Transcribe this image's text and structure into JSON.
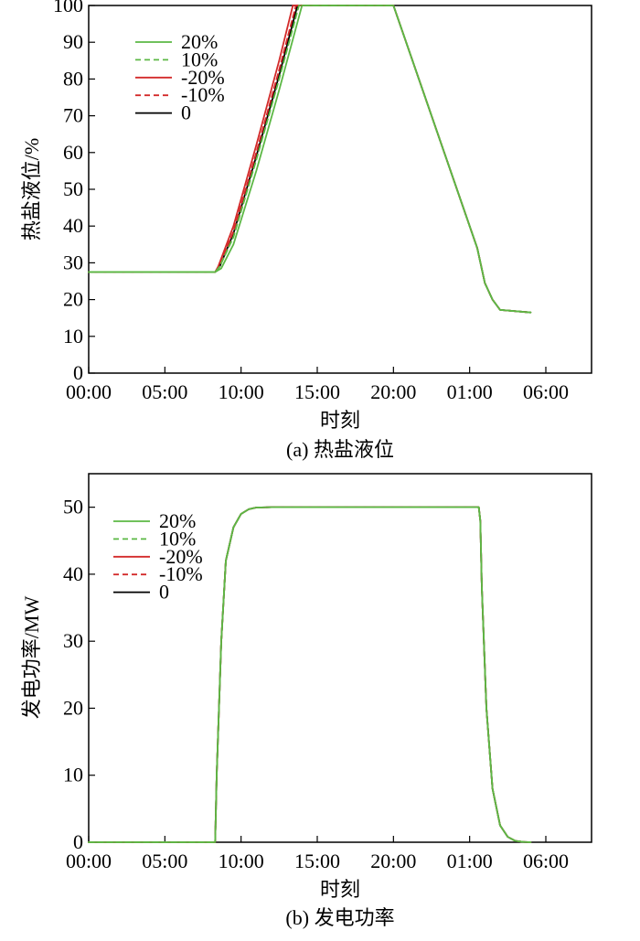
{
  "chart_data": [
    {
      "type": "line",
      "caption": "(a) 热盐液位",
      "xlabel": "时刻",
      "ylabel": "热盐液位/%",
      "x_ticks": [
        "00:00",
        "05:00",
        "10:00",
        "15:00",
        "20:00",
        "01:00",
        "06:00"
      ],
      "xlim": [
        0,
        33.0
      ],
      "ylim": [
        0,
        100
      ],
      "y_ticks": [
        "0",
        "10",
        "20",
        "30",
        "40",
        "50",
        "60",
        "70",
        "80",
        "90",
        "100"
      ],
      "grid": false,
      "legend_position": "top-left",
      "series": [
        {
          "name": "20%",
          "color": "#5cb845",
          "dash": "solid",
          "x": [
            0,
            8.3,
            8.7,
            9.5,
            11,
            12.5,
            14.0,
            20.0,
            22.0,
            24.0,
            25.5,
            26.0,
            26.5,
            27.0,
            29.0
          ],
          "y": [
            27.5,
            27.5,
            28.5,
            35,
            55,
            77,
            100,
            100,
            76,
            52,
            34,
            24.5,
            20,
            17.2,
            16.5
          ]
        },
        {
          "name": "10%",
          "color": "#5cb845",
          "dash": "dashed",
          "x": [
            0,
            8.3,
            8.6,
            9.5,
            11,
            12.5,
            13.8,
            20.0,
            22.0,
            24.0,
            25.5,
            26.0,
            26.5,
            27.0,
            29.0
          ],
          "y": [
            27.5,
            27.5,
            29,
            37,
            58,
            80,
            100,
            100,
            76,
            52,
            34,
            24.5,
            20,
            17.2,
            16.5
          ]
        },
        {
          "name": "-20%",
          "color": "#d32a2a",
          "dash": "solid",
          "x": [
            0,
            8.3,
            8.5,
            9.5,
            11,
            12.5,
            13.4,
            20.0,
            22.0,
            24.0,
            25.5,
            26.0,
            26.5,
            27.0,
            29.0
          ],
          "y": [
            27.5,
            27.5,
            29,
            40,
            62,
            85,
            100,
            100,
            76,
            52,
            34,
            24.5,
            20,
            17.2,
            16.5
          ]
        },
        {
          "name": "-10%",
          "color": "#d32a2a",
          "dash": "dashed",
          "x": [
            0,
            8.3,
            8.55,
            9.5,
            11,
            12.5,
            13.6,
            20.0,
            22.0,
            24.0,
            25.5,
            26.0,
            26.5,
            27.0,
            29.0
          ],
          "y": [
            27.5,
            27.5,
            29,
            38.5,
            60,
            82.5,
            100,
            100,
            76,
            52,
            34,
            24.5,
            20,
            17.2,
            16.5
          ]
        },
        {
          "name": "0",
          "color": "#000000",
          "dash": "solid",
          "x": [
            0,
            8.3,
            8.6,
            9.5,
            11,
            12.5,
            13.7,
            20.0,
            22.0,
            24.0,
            25.5,
            26.0,
            26.5,
            27.0,
            29.0
          ],
          "y": [
            27.5,
            27.5,
            29,
            38,
            59,
            81,
            100,
            100,
            76,
            52,
            34,
            24.5,
            20,
            17.2,
            16.5
          ]
        }
      ]
    },
    {
      "type": "line",
      "caption": "(b) 发电功率",
      "xlabel": "时刻",
      "ylabel": "发电功率/MW",
      "x_ticks": [
        "00:00",
        "05:00",
        "10:00",
        "15:00",
        "20:00",
        "01:00",
        "06:00"
      ],
      "xlim": [
        0,
        33.0
      ],
      "ylim": [
        0,
        55
      ],
      "y_ticks": [
        "0",
        "10",
        "20",
        "30",
        "40",
        "50"
      ],
      "grid": false,
      "legend_position": "top-left",
      "series": [
        {
          "name": "20%",
          "color": "#5cb845",
          "dash": "solid",
          "x": [
            0,
            8.3,
            8.4,
            8.7,
            9.0,
            9.5,
            10.0,
            10.5,
            11.0,
            12.0,
            13.0,
            25.6,
            25.7,
            25.8,
            26.1,
            26.5,
            27.0,
            27.5,
            28.0,
            28.5,
            29.0
          ],
          "y": [
            0,
            0,
            10,
            30,
            42,
            47,
            49,
            49.7,
            49.95,
            50,
            50,
            50,
            48,
            38,
            20,
            8,
            2.5,
            0.8,
            0.2,
            0.05,
            0
          ]
        },
        {
          "name": "10%",
          "color": "#5cb845",
          "dash": "dashed",
          "x": [
            0,
            8.3,
            8.4,
            8.7,
            9.0,
            9.5,
            10.0,
            10.5,
            11.0,
            12.0,
            13.0,
            25.6,
            25.7,
            25.8,
            26.1,
            26.5,
            27.0,
            27.5,
            28.0,
            28.5,
            29.0
          ],
          "y": [
            0,
            0,
            10,
            30,
            42,
            47,
            49,
            49.7,
            49.95,
            50,
            50,
            50,
            48,
            38,
            20,
            8,
            2.5,
            0.8,
            0.2,
            0.05,
            0
          ]
        },
        {
          "name": "-20%",
          "color": "#d32a2a",
          "dash": "solid",
          "x": [
            0,
            8.3,
            8.4,
            8.7,
            9.0,
            9.5,
            10.0,
            10.5,
            11.0,
            12.0,
            13.0,
            25.6,
            25.7,
            25.8,
            26.1,
            26.5,
            27.0,
            27.5,
            28.0,
            28.5,
            29.0
          ],
          "y": [
            0,
            0,
            10,
            30,
            42,
            47,
            49,
            49.7,
            49.95,
            50,
            50,
            50,
            48,
            38,
            20,
            8,
            2.5,
            0.8,
            0.2,
            0.05,
            0
          ]
        },
        {
          "name": "-10%",
          "color": "#d32a2a",
          "dash": "dashed",
          "x": [
            0,
            8.3,
            8.4,
            8.7,
            9.0,
            9.5,
            10.0,
            10.5,
            11.0,
            12.0,
            13.0,
            25.6,
            25.7,
            25.8,
            26.1,
            26.5,
            27.0,
            27.5,
            28.0,
            28.5,
            29.0
          ],
          "y": [
            0,
            0,
            10,
            30,
            42,
            47,
            49,
            49.7,
            49.95,
            50,
            50,
            50,
            48,
            38,
            20,
            8,
            2.5,
            0.8,
            0.2,
            0.05,
            0
          ]
        },
        {
          "name": "0",
          "color": "#000000",
          "dash": "solid",
          "x": [
            0,
            8.3,
            8.4,
            8.7,
            9.0,
            9.5,
            10.0,
            10.5,
            11.0,
            12.0,
            13.0,
            25.6,
            25.7,
            25.8,
            26.1,
            26.5,
            27.0,
            27.5,
            28.0,
            28.5,
            29.0
          ],
          "y": [
            0,
            0,
            10,
            30,
            42,
            47,
            49,
            49.7,
            49.95,
            50,
            50,
            50,
            48,
            38,
            20,
            8,
            2.5,
            0.8,
            0.2,
            0.05,
            0
          ]
        }
      ]
    }
  ]
}
